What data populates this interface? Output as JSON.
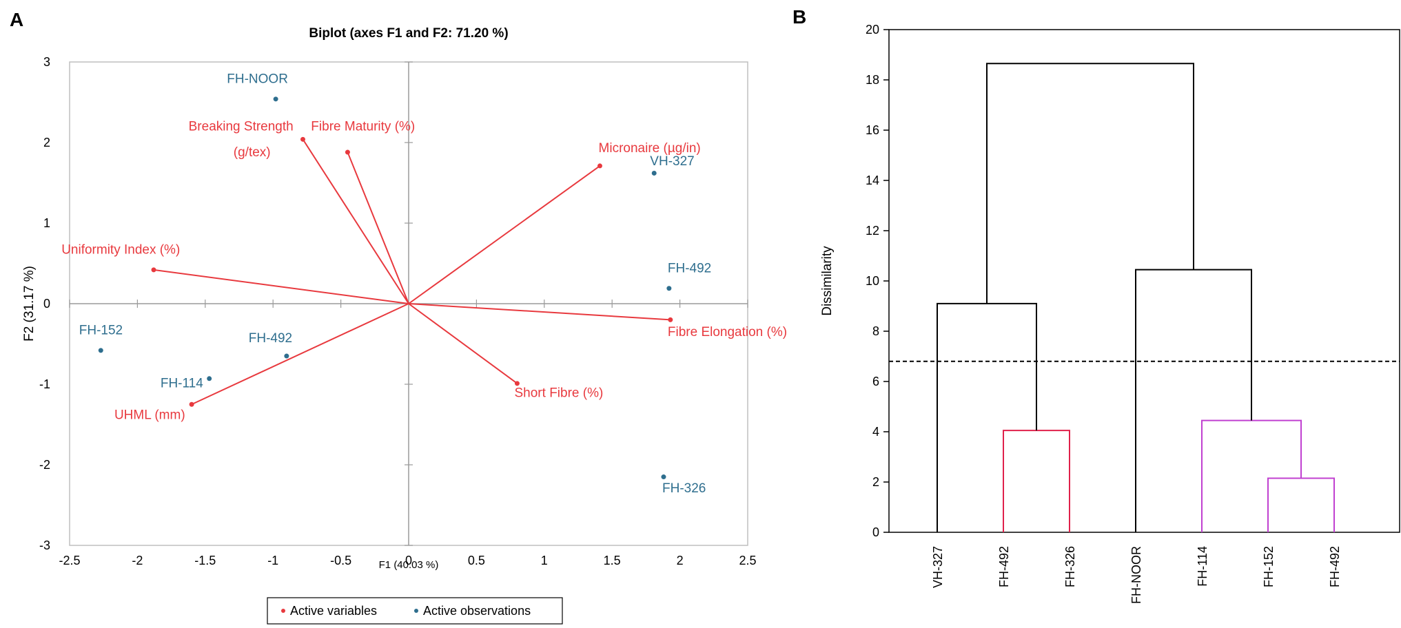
{
  "panels": {
    "a_letter": "A",
    "b_letter": "B"
  },
  "colors": {
    "variable": "#E8393E",
    "observation": "#2E6E8E",
    "axis": "#9a9a9a",
    "frame": "#bfbfbf",
    "dendro_black": "#000000",
    "dendro_red": "#E0204A",
    "dendro_purple": "#C040D0"
  },
  "chart_data": [
    {
      "type": "scatter",
      "subtype": "biplot",
      "title": "Biplot (axes F1 and F2: 71.20 %)",
      "xlabel": "F1 (40.03 %)",
      "ylabel": "F2 (31.17 %)",
      "xlim": [
        -2.5,
        2.5
      ],
      "ylim": [
        -3,
        3
      ],
      "xticks": [
        -2.5,
        -2,
        -1.5,
        -1,
        -0.5,
        0,
        0.5,
        1,
        1.5,
        2,
        2.5
      ],
      "yticks": [
        -3,
        -2,
        -1,
        0,
        1,
        2,
        3
      ],
      "xtick_labels": [
        "-2.5",
        "-2",
        "-1.5",
        "-1",
        "-0.5",
        "0",
        "0.5",
        "1",
        "1.5",
        "2",
        "2.5"
      ],
      "ytick_labels": [
        "-3",
        "-2",
        "-1",
        "0",
        "1",
        "2",
        "3"
      ],
      "legend": {
        "position": "bottom",
        "variables": "Active variables",
        "observations": "Active observations"
      },
      "variables": [
        {
          "name": "Breaking Strength",
          "name2": "(g/tex)",
          "x": -0.78,
          "y": 2.04,
          "lx": -0.85,
          "ly": 2.15,
          "anchor": "end",
          "ly2": 1.83
        },
        {
          "name": "Fibre Maturity (%)",
          "x": -0.45,
          "y": 1.88,
          "lx": -0.72,
          "ly": 2.15,
          "anchor": "start"
        },
        {
          "name": "Micronaire (µg/in)",
          "x": 1.41,
          "y": 1.71,
          "lx": 1.4,
          "ly": 1.88,
          "anchor": "start"
        },
        {
          "name": "Uniformity Index (%)",
          "x": -1.88,
          "y": 0.42,
          "lx": -2.56,
          "ly": 0.62,
          "anchor": "start"
        },
        {
          "name": "Fibre Elongation (%)",
          "x": 1.93,
          "y": -0.2,
          "lx": 1.91,
          "ly": -0.4,
          "anchor": "start"
        },
        {
          "name": "Short Fibre (%)",
          "x": 0.8,
          "y": -0.99,
          "lx": 0.78,
          "ly": -1.16,
          "anchor": "start"
        },
        {
          "name": "UHML (mm)",
          "x": -1.6,
          "y": -1.25,
          "lx": -2.17,
          "ly": -1.43,
          "anchor": "start"
        }
      ],
      "observations": [
        {
          "name": "FH-NOOR",
          "x": -0.98,
          "y": 2.54,
          "lx": -1.34,
          "ly": 2.74,
          "anchor": "start"
        },
        {
          "name": "VH-327",
          "x": 1.81,
          "y": 1.62,
          "lx": 1.78,
          "ly": 1.72,
          "anchor": "start"
        },
        {
          "name": "FH-492",
          "x": 1.92,
          "y": 0.19,
          "lx": 1.91,
          "ly": 0.39,
          "anchor": "start"
        },
        {
          "name": "FH-152",
          "x": -2.27,
          "y": -0.58,
          "lx": -2.43,
          "ly": -0.38,
          "anchor": "start"
        },
        {
          "name": "FH-492",
          "x": -0.9,
          "y": -0.65,
          "lx": -1.18,
          "ly": -0.48,
          "anchor": "start"
        },
        {
          "name": "FH-114",
          "x": -1.47,
          "y": -0.93,
          "lx": -1.83,
          "ly": -1.04,
          "anchor": "start"
        },
        {
          "name": "FH-326",
          "x": 1.88,
          "y": -2.15,
          "lx": 1.87,
          "ly": -2.34,
          "anchor": "start"
        }
      ]
    },
    {
      "type": "dendrogram",
      "ylabel": "Dissimilarity",
      "ylim": [
        0,
        20
      ],
      "yticks": [
        0,
        2,
        4,
        6,
        8,
        10,
        12,
        14,
        16,
        18,
        20
      ],
      "ytick_labels": [
        "0",
        "2",
        "4",
        "6",
        "8",
        "10",
        "12",
        "14",
        "16",
        "18",
        "20"
      ],
      "leaves": [
        "VH-327",
        "FH-492",
        "FH-326",
        "FH-NOOR",
        "FH-114",
        "FH-152",
        "FH-492"
      ],
      "cut_line": 6.8,
      "merges": [
        {
          "left": 1,
          "right": 2,
          "height": 4.05,
          "color": "red",
          "left_from": 0,
          "right_from": 0
        },
        {
          "left": 5,
          "right": 6,
          "height": 2.15,
          "color": "purple",
          "left_from": 0,
          "right_from": 0
        },
        {
          "left": 4,
          "right": 5.5,
          "height": 4.45,
          "color": "purple",
          "left_from": 0,
          "right_from": 2.15
        },
        {
          "left": 0,
          "right": 1.5,
          "height": 9.1,
          "color": "black",
          "left_from": 0,
          "right_from": 4.05
        },
        {
          "left": 3,
          "right": 4.75,
          "height": 10.45,
          "color": "black",
          "left_from": 0,
          "right_from": 4.45
        },
        {
          "left": 0.75,
          "right": 3.875,
          "height": 18.65,
          "color": "black",
          "left_from": 9.1,
          "right_from": 10.45
        }
      ]
    }
  ]
}
